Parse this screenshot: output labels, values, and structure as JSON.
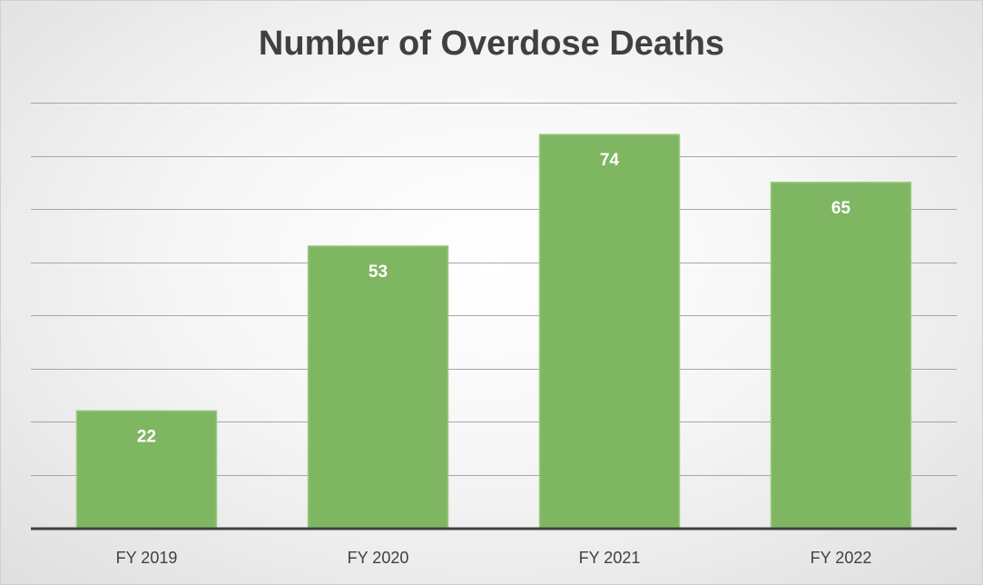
{
  "chart_data": {
    "type": "bar",
    "title": "Number of Overdose Deaths",
    "categories": [
      "FY 2019",
      "FY 2020",
      "FY 2021",
      "FY 2022"
    ],
    "values": [
      22,
      53,
      74,
      65
    ],
    "ylim": [
      0,
      80
    ],
    "ytick_step": 10,
    "grid": true,
    "data_labels": [
      "22",
      "53",
      "74",
      "65"
    ],
    "xlabel": "",
    "ylabel": "",
    "colors": {
      "bar": "#7fb662",
      "bar_edge": "#9cc986",
      "grid": "#a6a6a6",
      "axis": "#404040"
    }
  }
}
